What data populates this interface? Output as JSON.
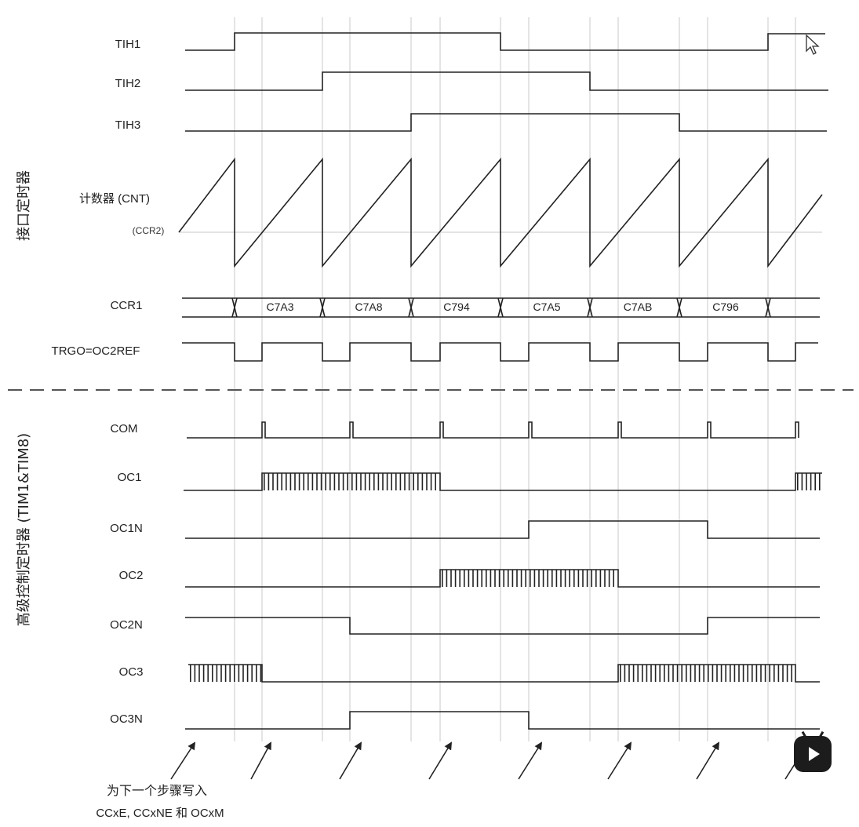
{
  "signals": {
    "tih1": "TIH1",
    "tih2": "TIH2",
    "tih3": "TIH3",
    "cnt": "计数器 (CNT)",
    "ccr2": "(CCR2)",
    "ccr1": "CCR1",
    "trgo": "TRGO=OC2REF",
    "com": "COM",
    "oc1": "OC1",
    "oc1n": "OC1N",
    "oc2": "OC2",
    "oc2n": "OC2N",
    "oc3": "OC3",
    "oc3n": "OC3N"
  },
  "ccr1_values": [
    "C7A3",
    "C7A8",
    "C794",
    "C7A5",
    "C7AB",
    "C796"
  ],
  "side_titles": {
    "interface_timer": "接口定时器",
    "advanced_timer": "高级控制定时器 (TIM1&TIM8)"
  },
  "note": {
    "line1": "为下一个步骤写入",
    "line2": "CCxE, CCxNE 和 OCxM"
  },
  "icons": {
    "cursor": "mouse-pointer-icon",
    "play": "play-button-icon"
  }
}
